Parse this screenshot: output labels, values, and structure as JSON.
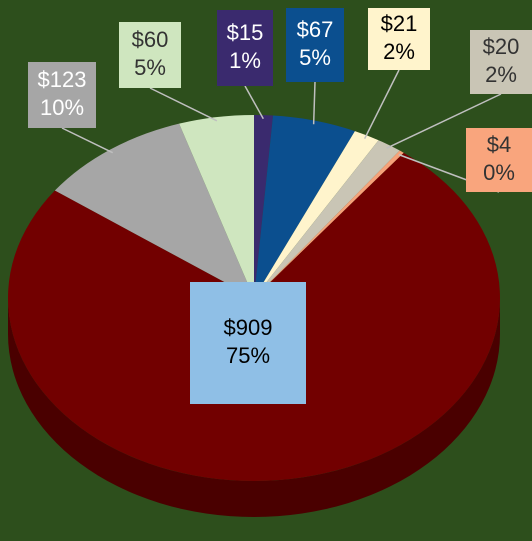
{
  "chart_data": {
    "type": "pie",
    "values": [
      15,
      67,
      21,
      20,
      4,
      909,
      123,
      60
    ],
    "value_labels": [
      "$15",
      "$67",
      "$21",
      "$20",
      "$4",
      "$909",
      "$123",
      "$60"
    ],
    "percent_labels": [
      "1%",
      "5%",
      "2%",
      "2%",
      "0%",
      "75%",
      "10%",
      "5%"
    ],
    "colors": [
      "#3a2a6e",
      "#0b4f8f",
      "#fff4cc",
      "#c9c5b5",
      "#f6a27a",
      "#720000",
      "#a6a6a6",
      "#cfe6bf"
    ],
    "label_colors": [
      "#3a2a6e",
      "#0b4f8f",
      "#fff4cc",
      "#c9c5b5",
      "#f9a57d",
      "#8fbfe6",
      "#a6a6a6",
      "#cfe6bf"
    ]
  }
}
